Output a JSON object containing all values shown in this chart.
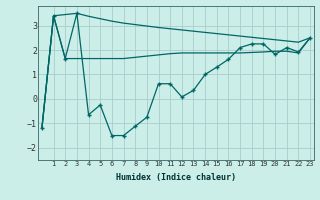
{
  "xlabel": "Humidex (Indice chaleur)",
  "ylabel": "",
  "background_color": "#cceee8",
  "grid_color": "#aacccc",
  "line_color": "#006666",
  "xlim": [
    -0.3,
    23.3
  ],
  "ylim": [
    -2.5,
    3.8
  ],
  "yticks": [
    -2,
    -1,
    0,
    1,
    2,
    3
  ],
  "xticks": [
    1,
    2,
    3,
    4,
    5,
    6,
    7,
    8,
    9,
    10,
    11,
    12,
    13,
    14,
    15,
    16,
    17,
    18,
    19,
    20,
    21,
    22,
    23
  ],
  "line1_x": [
    0,
    1,
    3,
    4,
    5,
    6,
    7,
    8,
    9,
    10,
    11,
    12,
    13,
    14,
    15,
    16,
    17,
    18,
    19,
    20,
    21,
    22,
    23
  ],
  "line1_y": [
    -1.2,
    3.4,
    3.5,
    3.38,
    3.28,
    3.18,
    3.1,
    3.04,
    2.98,
    2.92,
    2.87,
    2.82,
    2.77,
    2.72,
    2.67,
    2.62,
    2.57,
    2.52,
    2.47,
    2.42,
    2.37,
    2.32,
    2.5
  ],
  "line2_x": [
    0,
    1,
    2,
    3,
    4,
    5,
    6,
    7,
    8,
    9,
    10,
    11,
    12,
    13,
    14,
    15,
    16,
    17,
    18,
    19,
    20,
    21,
    22,
    23
  ],
  "line2_y": [
    -1.2,
    3.4,
    1.65,
    1.65,
    1.65,
    1.65,
    1.65,
    1.65,
    1.7,
    1.75,
    1.8,
    1.85,
    1.88,
    1.88,
    1.88,
    1.88,
    1.88,
    1.88,
    1.9,
    1.92,
    1.95,
    1.95,
    1.88,
    2.5
  ],
  "line3_x": [
    0,
    1,
    2,
    3,
    4,
    5,
    6,
    7,
    8,
    9,
    10,
    11,
    12,
    13,
    14,
    15,
    16,
    17,
    18,
    19,
    20,
    21,
    22,
    23
  ],
  "line3_y": [
    -1.2,
    3.4,
    1.65,
    3.5,
    -0.65,
    -0.25,
    -1.5,
    -1.5,
    -1.12,
    -0.75,
    0.62,
    0.62,
    0.08,
    0.35,
    1.0,
    1.3,
    1.62,
    2.1,
    2.25,
    2.25,
    1.82,
    2.1,
    1.92,
    2.5
  ]
}
